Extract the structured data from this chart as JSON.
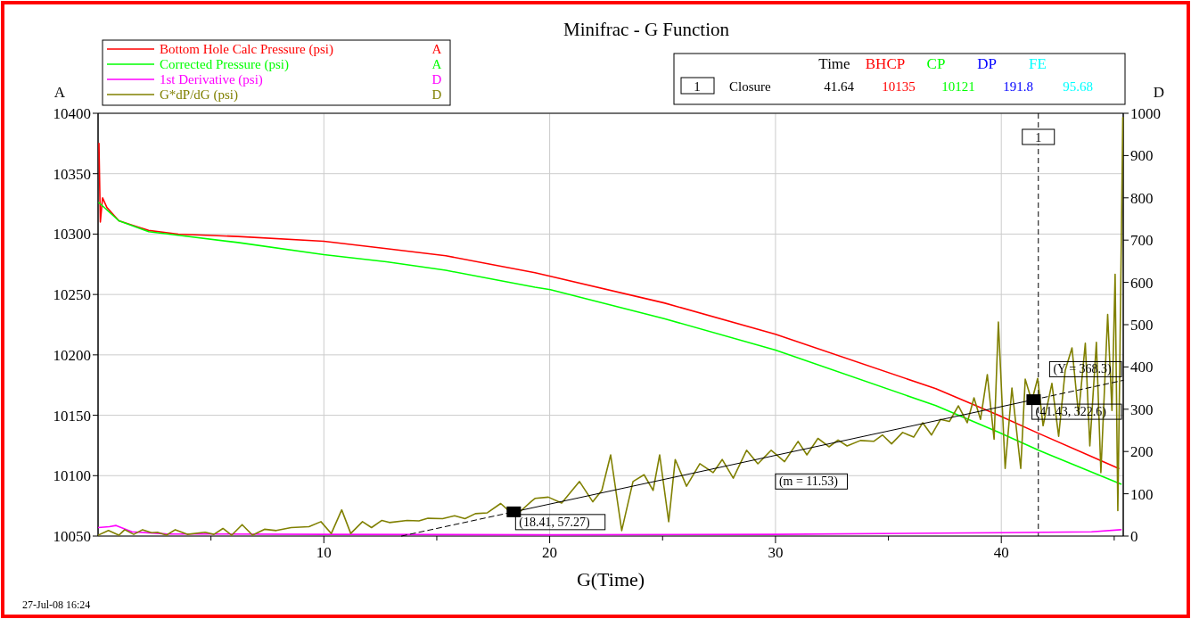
{
  "chart_data": {
    "type": "line",
    "title": "Minifrac - G Function",
    "xlabel": "G(Time)",
    "ylabel": "A",
    "y2label": "D",
    "xlim": [
      0,
      45.4
    ],
    "xticks": [
      {
        "value": 5,
        "label": null
      },
      10,
      {
        "value": 15,
        "label": null
      },
      20,
      {
        "value": 25,
        "label": null
      },
      30,
      {
        "value": 35,
        "label": null
      },
      40,
      {
        "value": 45,
        "label": null
      }
    ],
    "ylim": [
      10050,
      10400
    ],
    "yticks": [
      10050,
      10100,
      10150,
      10200,
      10250,
      10300,
      10350,
      10400
    ],
    "y2lim": [
      0,
      1000
    ],
    "y2ticks": [
      0,
      100,
      200,
      300,
      400,
      500,
      600,
      700,
      800,
      900,
      1000
    ],
    "grid": true,
    "legend": "top left",
    "series": [
      {
        "name": "Bottom Hole Calc Pressure (psi)",
        "color": "#ff0000",
        "axis": "y",
        "x": [
          0.04,
          0.1,
          0.2,
          0.39,
          0.92,
          1.58,
          2.24,
          3.55,
          6.19,
          10,
          12.77,
          15.4,
          17.37,
          19.35,
          20.03,
          25.07,
          30,
          37.1,
          39.87,
          41.65,
          45.2
        ],
        "values": [
          10375,
          10310,
          10330,
          10322,
          10311,
          10307,
          10303,
          10300,
          10298,
          10294,
          10288,
          10282,
          10275,
          10268,
          10265,
          10243,
          10217,
          10172,
          10150,
          10135,
          10106
        ]
      },
      {
        "name": "Corrected Pressure (psi)",
        "color": "#00ff00",
        "axis": "y",
        "x": [
          0.04,
          0.92,
          2.24,
          3.55,
          6.19,
          10,
          12.77,
          15.4,
          17.37,
          19.35,
          20.03,
          25.07,
          30,
          37.1,
          39.87,
          41.65,
          45.3
        ],
        "values": [
          10326,
          10311,
          10302,
          10299,
          10293,
          10283,
          10277,
          10270,
          10263,
          10256,
          10254,
          10230,
          10204,
          10158,
          10136,
          10121,
          10093
        ]
      },
      {
        "name": "1st Derivative (psi)",
        "color": "#ff00ff",
        "axis": "y2",
        "x": [
          0,
          0.5,
          0.8,
          1.5,
          3,
          10,
          20,
          30,
          40,
          44,
          45.3
        ],
        "values": [
          20,
          22,
          25,
          10,
          5,
          4,
          3,
          4,
          8,
          10,
          15
        ]
      },
      {
        "name": "G*dP/dG (psi)",
        "color": "#808000",
        "axis": "y2",
        "x": [
          0,
          0.46,
          0.92,
          1.18,
          1.58,
          1.97,
          2.37,
          2.63,
          3.03,
          3.42,
          3.95,
          4.74,
          5.13,
          5.53,
          5.92,
          6.38,
          6.84,
          7.37,
          7.89,
          8.55,
          9.34,
          9.87,
          10.33,
          10.79,
          11.19,
          11.71,
          12.11,
          12.57,
          12.9,
          13.69,
          14.21,
          14.61,
          15.26,
          15.79,
          16.25,
          16.71,
          17.24,
          17.83,
          18.29,
          18.69,
          19.21,
          19.35,
          19.94,
          20.53,
          21.32,
          21.91,
          22.31,
          22.7,
          23.19,
          23.69,
          24.18,
          24.58,
          24.87,
          25.27,
          25.56,
          26.06,
          26.65,
          27.24,
          27.64,
          28.13,
          28.72,
          29.22,
          29.81,
          30.4,
          31,
          31.39,
          31.88,
          32.37,
          32.77,
          33.17,
          33.76,
          34.35,
          34.74,
          35.14,
          35.63,
          36.12,
          36.52,
          36.91,
          37.31,
          37.7,
          38.1,
          38.49,
          38.79,
          39.08,
          39.38,
          39.68,
          39.87,
          40.17,
          40.47,
          40.86,
          41.06,
          41.35,
          41.61,
          41.85,
          42.24,
          42.54,
          42.83,
          43.13,
          43.42,
          43.72,
          43.92,
          44.21,
          44.41,
          44.71,
          44.9,
          45.04,
          45.16,
          45.24,
          45.38
        ],
        "values": [
          2,
          13,
          2,
          15,
          4,
          15,
          8,
          9,
          2,
          15,
          4,
          9,
          4,
          18,
          2,
          27,
          2,
          16,
          13,
          20,
          22,
          34,
          6,
          62,
          6,
          34,
          20,
          37,
          32,
          37,
          36,
          42,
          41,
          48,
          41,
          53,
          55,
          77,
          55,
          58,
          83,
          89,
          92,
          78,
          129,
          81,
          108,
          192,
          13,
          129,
          145,
          108,
          192,
          34,
          181,
          118,
          171,
          150,
          181,
          137,
          203,
          171,
          203,
          176,
          224,
          192,
          231,
          211,
          227,
          213,
          226,
          224,
          239,
          218,
          245,
          234,
          268,
          239,
          276,
          271,
          308,
          268,
          327,
          276,
          382,
          229,
          506,
          160,
          350,
          160,
          371,
          319,
          373,
          261,
          361,
          236,
          392,
          445,
          287,
          456,
          213,
          458,
          150,
          524,
          297,
          619,
          60,
          371,
          990
        ]
      },
      {
        "type": "line",
        "color": "#000000",
        "axis": "y2",
        "line_style": "dashed",
        "x": [
          13.44,
          18.41
        ],
        "values": [
          0,
          57.27
        ]
      },
      {
        "type": "line",
        "color": "#000000",
        "axis": "y2",
        "line_style": "solid",
        "x": [
          18.41,
          41.43
        ],
        "values": [
          57.27,
          322.6
        ]
      },
      {
        "type": "line",
        "color": "#000000",
        "axis": "y2",
        "line_style": "dashed",
        "x": [
          41.43,
          45.4
        ],
        "values": [
          322.6,
          368.3
        ]
      },
      {
        "type": "scatter",
        "color": "#000000",
        "axis": "y2",
        "marker": "square",
        "x": [
          18.41,
          41.43
        ],
        "values": [
          57.27,
          322.6
        ]
      }
    ],
    "ref_lines": [
      {
        "axis": "x",
        "value": 41.64,
        "line_style": "dashed",
        "color": "#000000"
      }
    ],
    "annotations": [
      "(18.41, 57.27)",
      "(m = 11.53)",
      "(41.43, 322.6)",
      "(Y = 368.3)",
      "1",
      "A",
      "A",
      "D",
      "D",
      "Time",
      "BHCP",
      "CP",
      "DP",
      "FE",
      "1",
      "Closure",
      "41.64",
      "10135",
      "10121",
      "191.8",
      "95.68",
      "27-Jul-08 16:24"
    ]
  }
}
